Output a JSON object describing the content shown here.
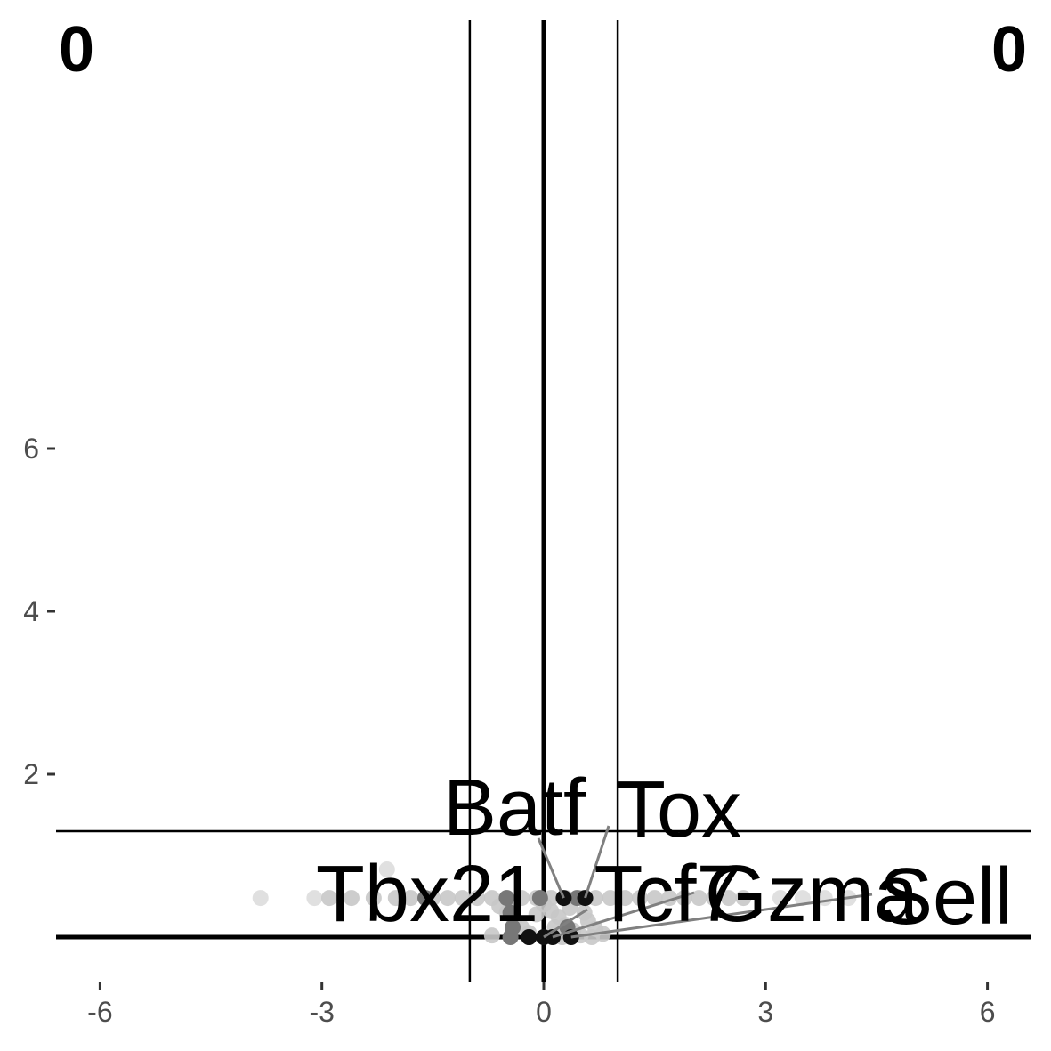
{
  "chart_data": {
    "type": "scatter",
    "title": "",
    "xlabel": "",
    "ylabel": "",
    "xlim": [
      -6.6,
      6.6
    ],
    "ylim": [
      -0.2,
      6.35
    ],
    "x_ticks": [
      -6,
      -3,
      0,
      3,
      6
    ],
    "x_tick_labels": [
      "-6",
      "-3",
      "0",
      "3",
      "6"
    ],
    "y_ticks": [
      2,
      4,
      6
    ],
    "y_tick_labels": [
      "2",
      "4",
      "6"
    ],
    "grid": false,
    "reference_lines": {
      "vertical": [
        -1,
        1
      ],
      "horizontal": [
        1.3
      ],
      "axis_zero_lines": true
    },
    "corner_counts": {
      "top_left": "0",
      "top_right": "0"
    },
    "colors": {
      "background_point": "#c8c8c8",
      "background_point_light": "#dddddd",
      "mid_point": "#777777",
      "highlight_point": "#111111",
      "reference_line": "#000000",
      "leader_line": "#808080"
    },
    "series": [
      {
        "values": [
          [
            -3.83,
            0.48
          ],
          [
            -3.1,
            0.48
          ],
          [
            -2.9,
            0.48
          ],
          [
            -2.6,
            0.48
          ],
          [
            -2.3,
            0.48
          ],
          [
            -2.0,
            0.48
          ],
          [
            -1.8,
            0.48
          ],
          [
            -1.5,
            0.48
          ],
          [
            -1.3,
            0.48
          ],
          [
            -1.1,
            0.48
          ],
          [
            -0.9,
            0.48
          ],
          [
            -0.7,
            0.48
          ],
          [
            -0.5,
            0.48
          ],
          [
            -0.3,
            0.48
          ],
          [
            -0.1,
            0.48
          ],
          [
            0.1,
            0.48
          ],
          [
            0.3,
            0.48
          ],
          [
            0.5,
            0.48
          ],
          [
            0.7,
            0.48
          ],
          [
            0.9,
            0.48
          ],
          [
            1.1,
            0.48
          ],
          [
            1.3,
            0.48
          ],
          [
            1.5,
            0.48
          ],
          [
            1.7,
            0.48
          ],
          [
            1.9,
            0.48
          ],
          [
            2.1,
            0.48
          ],
          [
            2.3,
            0.48
          ],
          [
            2.5,
            0.48
          ],
          [
            2.7,
            0.48
          ],
          [
            3.2,
            0.48
          ],
          [
            3.5,
            0.48
          ],
          [
            3.8,
            0.48
          ],
          [
            4.12,
            0.48
          ],
          [
            -2.12,
            0.83
          ],
          [
            -0.6,
            0.38
          ],
          [
            -0.5,
            0.3
          ],
          [
            -0.4,
            0.2
          ],
          [
            -0.3,
            0.12
          ],
          [
            -0.2,
            0.05
          ],
          [
            0.0,
            0.4
          ],
          [
            0.1,
            0.32
          ],
          [
            0.2,
            0.25
          ],
          [
            0.3,
            0.15
          ],
          [
            0.4,
            0.08
          ],
          [
            0.5,
            0.02
          ],
          [
            0.6,
            0.2
          ],
          [
            0.7,
            0.1
          ],
          [
            0.8,
            0.04
          ],
          [
            -0.7,
            0.02
          ],
          [
            -0.1,
            0.28
          ],
          [
            0.15,
            0.12
          ],
          [
            0.35,
            0.36
          ],
          [
            0.55,
            0.3
          ],
          [
            -0.45,
            0.42
          ],
          [
            0.25,
            0.0
          ],
          [
            0.65,
            0.0
          ],
          [
            -0.2,
            0.0
          ]
        ]
      },
      {
        "values": [
          [
            -1.6,
            0.48
          ],
          [
            -0.5,
            0.48
          ],
          [
            -0.05,
            0.48
          ],
          [
            0.45,
            0.48
          ],
          [
            -0.45,
            0.3
          ],
          [
            -0.42,
            0.12
          ],
          [
            0.32,
            0.12
          ],
          [
            -0.45,
            0.0
          ],
          [
            -0.2,
            0.0
          ]
        ]
      },
      {
        "values": [
          [
            0.27,
            0.48
          ],
          [
            0.56,
            0.48
          ],
          [
            -0.2,
            0.0
          ],
          [
            0.0,
            0.0
          ],
          [
            0.12,
            0.0
          ],
          [
            0.37,
            0.0
          ]
        ]
      }
    ],
    "labeled_genes": [
      {
        "gene": "Batf",
        "x": 0.27,
        "y": 0.48
      },
      {
        "gene": "Tox",
        "x": 0.56,
        "y": 0.48
      },
      {
        "gene": "Tbx21",
        "x": -0.2,
        "y": 0.0
      },
      {
        "gene": "Tcf7",
        "x": 0.0,
        "y": 0.0
      },
      {
        "gene": "Gzma",
        "x": 0.12,
        "y": 0.0
      },
      {
        "gene": "Sell",
        "x": 0.37,
        "y": 0.0
      }
    ]
  }
}
